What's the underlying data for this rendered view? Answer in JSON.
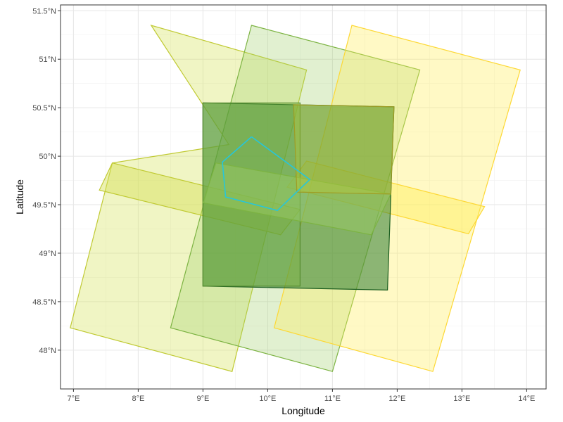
{
  "chart_data": {
    "type": "map",
    "title": "",
    "xlabel": "Longitude",
    "ylabel": "Latitude",
    "xlim": [
      6.8,
      14.3
    ],
    "ylim": [
      47.6,
      51.56
    ],
    "grid": true,
    "legend": "none",
    "x_ticks": [
      {
        "value": 7,
        "label": "7°E"
      },
      {
        "value": 8,
        "label": "8°E"
      },
      {
        "value": 9,
        "label": "9°E"
      },
      {
        "value": 10,
        "label": "10°E"
      },
      {
        "value": 11,
        "label": "11°E"
      },
      {
        "value": 12,
        "label": "12°E"
      },
      {
        "value": 13,
        "label": "13°E"
      },
      {
        "value": 14,
        "label": "14°E"
      }
    ],
    "y_ticks": [
      {
        "value": 48.0,
        "label": "48°N"
      },
      {
        "value": 48.5,
        "label": "48.5°N"
      },
      {
        "value": 49.0,
        "label": "49°N"
      },
      {
        "value": 49.5,
        "label": "49.5°N"
      },
      {
        "value": 50.0,
        "label": "50°N"
      },
      {
        "value": 50.5,
        "label": "50.5°N"
      },
      {
        "value": 51.0,
        "label": "51°N"
      },
      {
        "value": 51.5,
        "label": "51.5°N"
      }
    ],
    "polygons": [
      {
        "fill": "#d4e157",
        "stroke": "#c0ca33",
        "opacity": 0.35,
        "coords": [
          [
            8.2,
            51.35
          ],
          [
            9.4,
            50.12
          ],
          [
            7.6,
            49.93
          ],
          [
            6.95,
            48.23
          ],
          [
            9.45,
            47.78
          ],
          [
            10.6,
            50.89
          ]
        ]
      },
      {
        "fill": "#9ccc65",
        "stroke": "#7cb342",
        "opacity": 0.3,
        "coords": [
          [
            9.75,
            51.35
          ],
          [
            8.5,
            48.23
          ],
          [
            11.0,
            47.78
          ],
          [
            12.35,
            50.89
          ]
        ]
      },
      {
        "fill": "#ffee58",
        "stroke": "#fdd835",
        "opacity": 0.35,
        "coords": [
          [
            11.3,
            51.35
          ],
          [
            10.1,
            48.23
          ],
          [
            12.55,
            47.78
          ],
          [
            13.9,
            50.89
          ]
        ]
      },
      {
        "fill": "#d4e157",
        "stroke": "#c0ca33",
        "opacity": 0.45,
        "coords": [
          [
            7.6,
            49.93
          ],
          [
            10.5,
            49.45
          ],
          [
            10.2,
            49.19
          ],
          [
            7.4,
            49.65
          ]
        ]
      },
      {
        "fill": "#ffee58",
        "stroke": "#fdd835",
        "opacity": 0.45,
        "coords": [
          [
            10.6,
            49.95
          ],
          [
            13.35,
            49.48
          ],
          [
            13.1,
            49.2
          ],
          [
            10.3,
            49.68
          ]
        ]
      },
      {
        "fill": "#2e7d32",
        "stroke": "#1b5e20",
        "opacity": 0.55,
        "coords": [
          [
            9.0,
            50.55
          ],
          [
            11.95,
            50.51
          ],
          [
            11.85,
            48.62
          ],
          [
            9.0,
            48.66
          ]
        ]
      },
      {
        "fill": "#7cb342",
        "stroke": "#558b2f",
        "opacity": 0.45,
        "coords": [
          [
            9.0,
            50.55
          ],
          [
            10.5,
            50.55
          ],
          [
            10.5,
            48.66
          ],
          [
            9.0,
            48.66
          ]
        ]
      },
      {
        "fill": "#9ccc65",
        "stroke": "#7cb342",
        "opacity": 0.45,
        "coords": [
          [
            9.2,
            49.93
          ],
          [
            11.9,
            49.61
          ],
          [
            11.6,
            49.19
          ],
          [
            9.0,
            49.52
          ]
        ]
      },
      {
        "fill": "#c0ca33",
        "stroke": "#9e9d24",
        "opacity": 0.35,
        "coords": [
          [
            10.4,
            50.53
          ],
          [
            11.95,
            50.51
          ],
          [
            11.9,
            49.61
          ],
          [
            10.45,
            49.63
          ]
        ]
      }
    ],
    "outline": {
      "stroke": "#26c6da",
      "coords": [
        [
          9.75,
          50.2
        ],
        [
          10.65,
          49.76
        ],
        [
          10.15,
          49.44
        ],
        [
          9.35,
          49.58
        ],
        [
          9.3,
          49.94
        ],
        [
          9.75,
          50.2
        ]
      ]
    }
  }
}
